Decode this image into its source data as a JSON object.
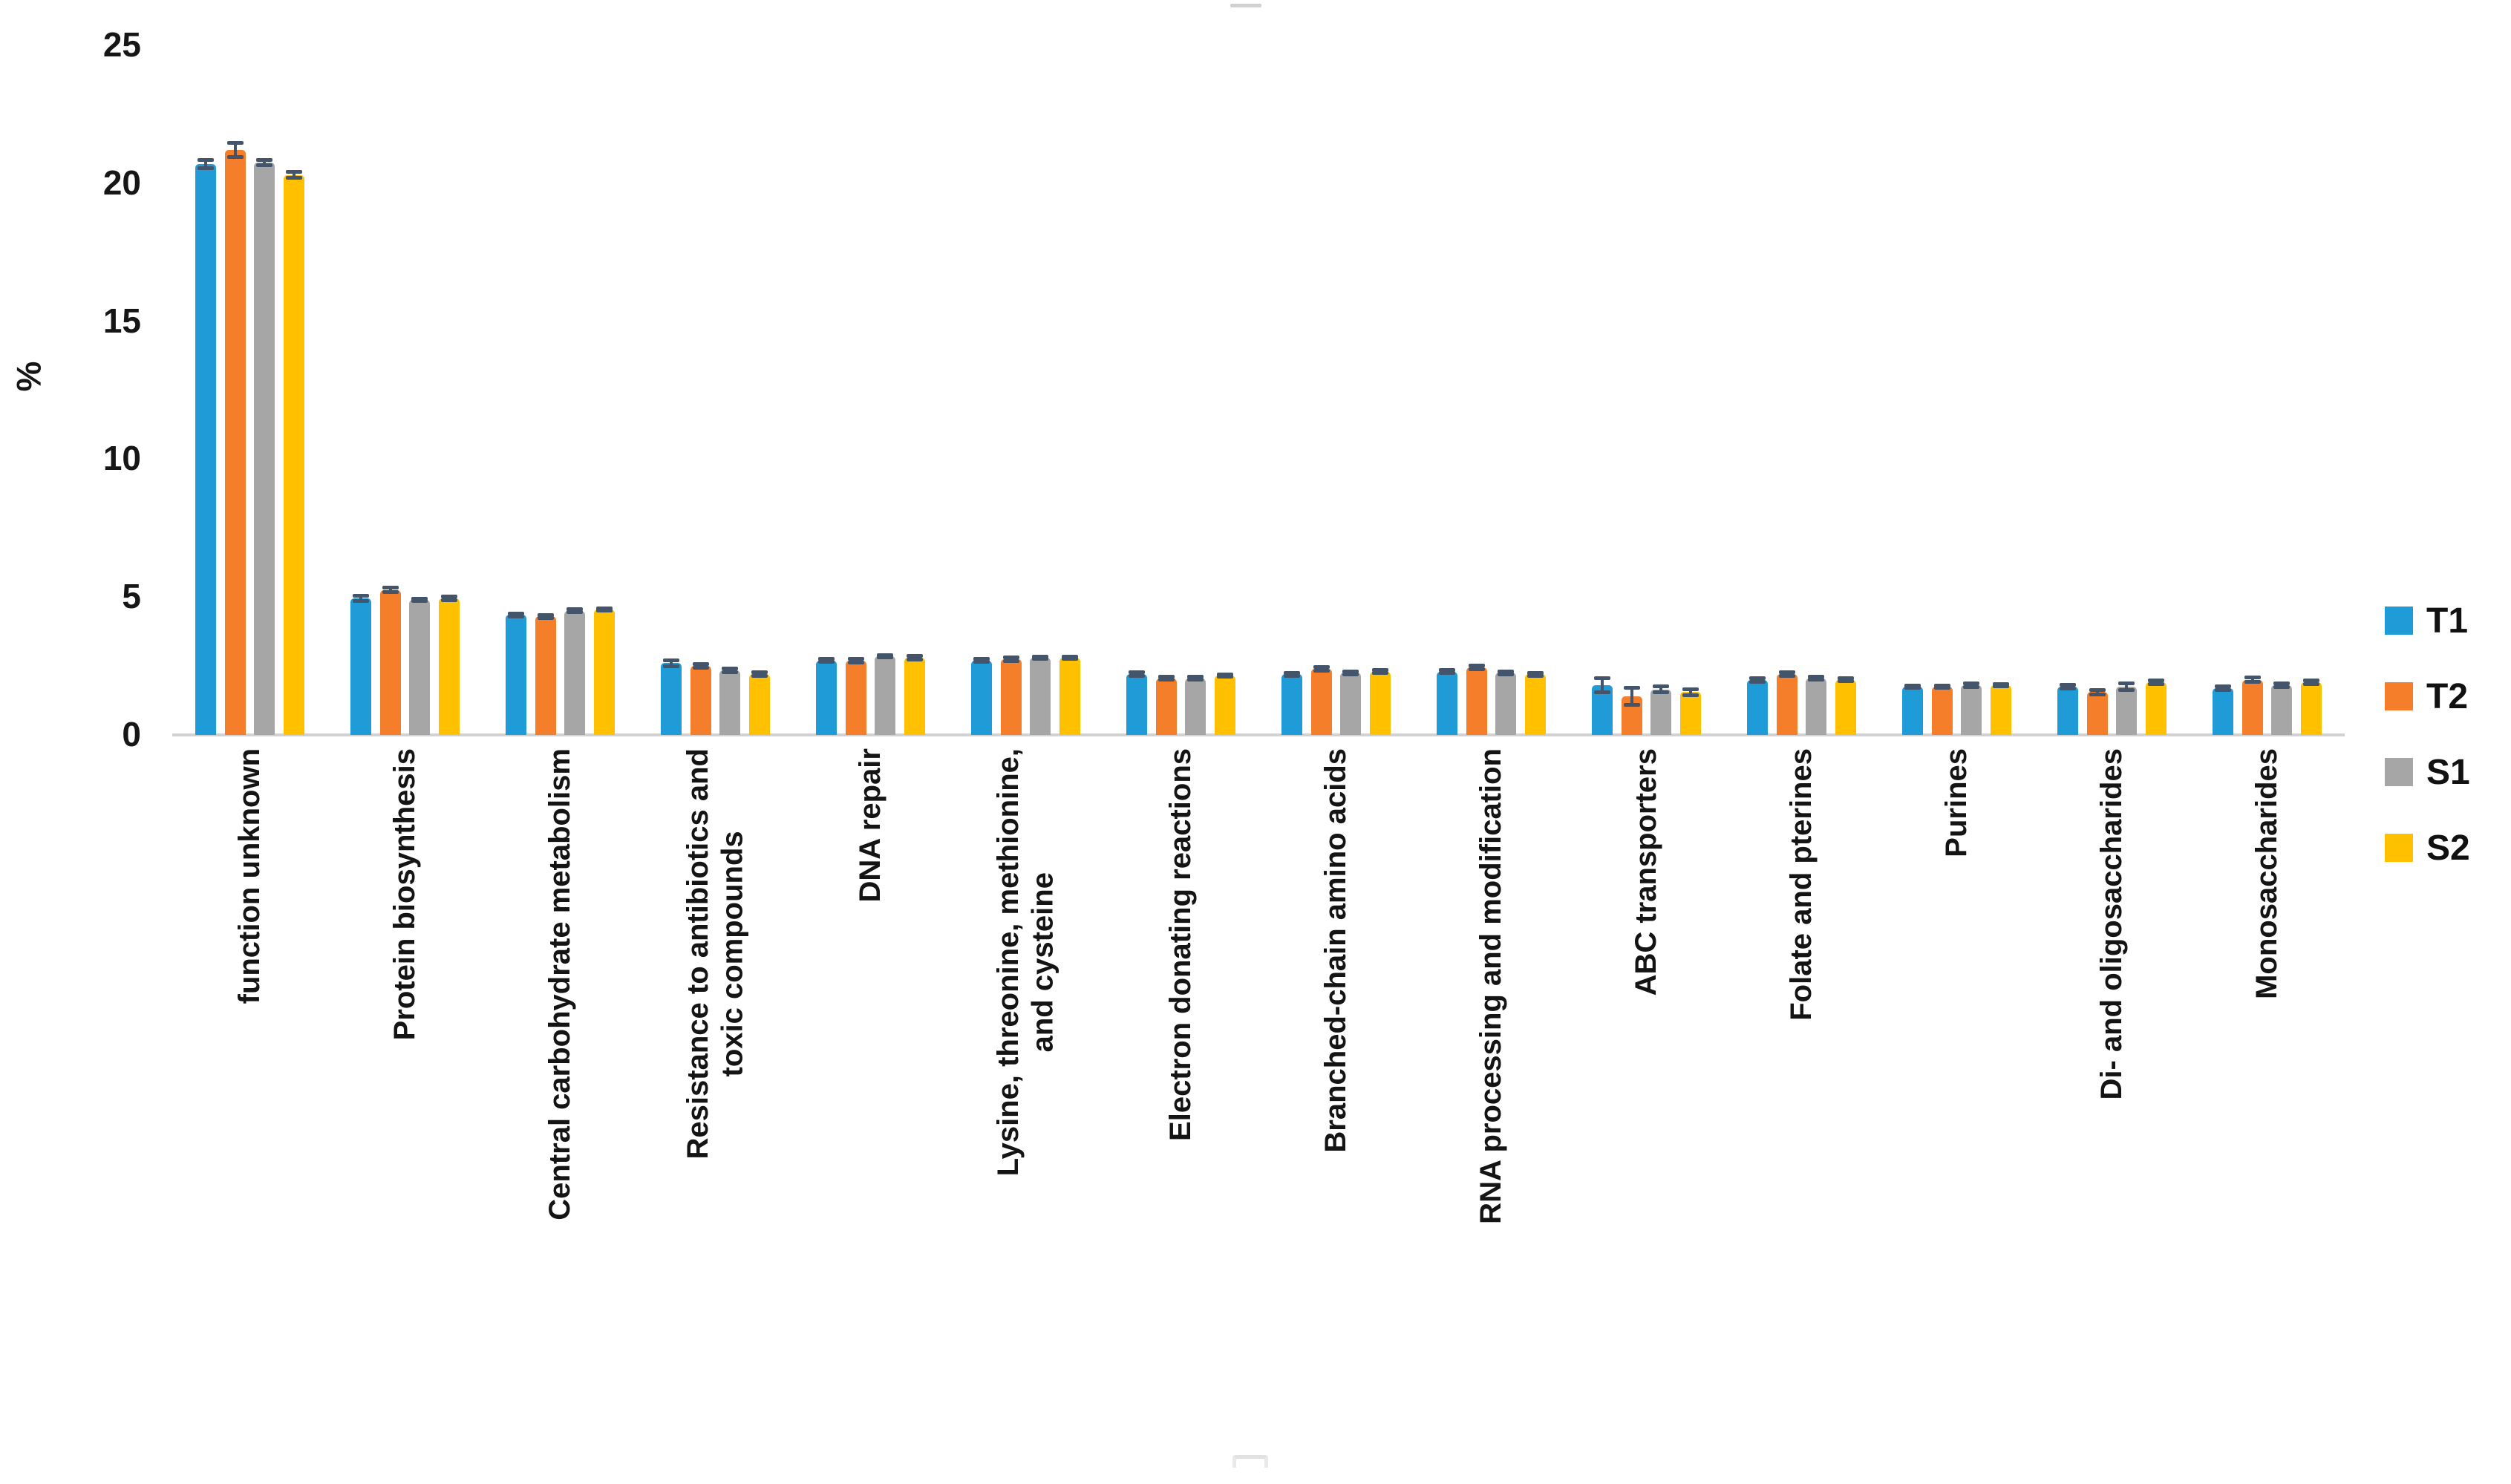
{
  "chart_data": {
    "type": "bar",
    "title": "",
    "ylabel": "%",
    "xlabel": "",
    "ylim": [
      0,
      25
    ],
    "yticks": [
      0,
      5,
      10,
      15,
      20,
      25
    ],
    "grid": false,
    "legend_position": "right",
    "error_bars": true,
    "categories": [
      "function unknown",
      "Protein biosynthesis",
      "Central carbohydrate metabolism",
      "Resistance to antibiotics and\ntoxic compounds",
      "DNA repair",
      "Lysine, threonine, methionine,\nand cysteine",
      "Electron donating reactions",
      "Branched-chain amino acids",
      "RNA processing and modification",
      "ABC transporters",
      "Folate and pterines",
      "Purines",
      "Di- and oligosaccharides",
      "Monosaccharides"
    ],
    "series": [
      {
        "name": "T1",
        "color": "#1F9BD7",
        "values": [
          20.7,
          4.95,
          4.35,
          2.6,
          2.7,
          2.7,
          2.2,
          2.2,
          2.3,
          1.8,
          2.0,
          1.75,
          1.75,
          1.7
        ],
        "errors": [
          0.15,
          0.1,
          0.05,
          0.1,
          0.06,
          0.05,
          0.07,
          0.05,
          0.05,
          0.25,
          0.07,
          0.05,
          0.07,
          0.07
        ]
      },
      {
        "name": "T2",
        "color": "#F57E2B",
        "values": [
          21.2,
          5.25,
          4.3,
          2.5,
          2.7,
          2.75,
          2.05,
          2.4,
          2.45,
          1.4,
          2.2,
          1.75,
          1.55,
          2.0
        ],
        "errors": [
          0.25,
          0.08,
          0.05,
          0.07,
          0.07,
          0.06,
          0.05,
          0.07,
          0.07,
          0.3,
          0.07,
          0.05,
          0.07,
          0.08
        ]
      },
      {
        "name": "S1",
        "color": "#A6A6A6",
        "values": [
          20.75,
          4.9,
          4.5,
          2.35,
          2.85,
          2.8,
          2.05,
          2.25,
          2.25,
          1.65,
          2.05,
          1.8,
          1.75,
          1.8
        ],
        "errors": [
          0.1,
          0.05,
          0.05,
          0.07,
          0.05,
          0.05,
          0.05,
          0.05,
          0.05,
          0.1,
          0.05,
          0.07,
          0.12,
          0.07
        ]
      },
      {
        "name": "S2",
        "color": "#FFC000",
        "values": [
          20.3,
          4.95,
          4.55,
          2.2,
          2.8,
          2.8,
          2.15,
          2.3,
          2.2,
          1.55,
          2.0,
          1.8,
          1.9,
          1.9
        ],
        "errors": [
          0.1,
          0.07,
          0.05,
          0.07,
          0.06,
          0.05,
          0.05,
          0.05,
          0.06,
          0.1,
          0.05,
          0.05,
          0.07,
          0.07
        ]
      }
    ],
    "colors": {
      "axis_line": "#d2d2d2",
      "error_bar": "#44546A",
      "text": "#161616"
    }
  }
}
